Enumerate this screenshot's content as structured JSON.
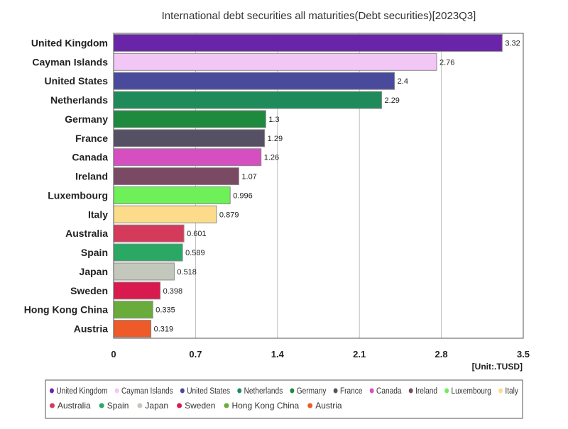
{
  "chart_data": {
    "type": "bar",
    "orientation": "horizontal",
    "title": "International debt securities all maturities(Debt securities)[2023Q3]",
    "unit_label": "[Unit:.TUSD]",
    "xlim": [
      0,
      3.5
    ],
    "x_ticks": [
      0,
      0.7,
      1.4,
      2.1,
      2.8,
      3.5
    ],
    "x_tick_labels": [
      "0",
      "0.7",
      "1.4",
      "2.1",
      "2.8",
      "3.5"
    ],
    "grid": true,
    "legend_position": "bottom",
    "categories": [
      "United Kingdom",
      "Cayman Islands",
      "United States",
      "Netherlands",
      "Germany",
      "France",
      "Canada",
      "Ireland",
      "Luxembourg",
      "Italy",
      "Australia",
      "Spain",
      "Japan",
      "Sweden",
      "Hong Kong China",
      "Austria"
    ],
    "values": [
      3.32,
      2.76,
      2.4,
      2.29,
      1.3,
      1.29,
      1.26,
      1.07,
      0.996,
      0.879,
      0.601,
      0.589,
      0.518,
      0.398,
      0.335,
      0.319
    ],
    "value_labels": [
      "3.32",
      "2.76",
      "2.4",
      "2.29",
      "1.3",
      "1.29",
      "1.26",
      "1.07",
      "0.996",
      "0.879",
      "0.601",
      "0.589",
      "0.518",
      "0.398",
      "0.335",
      "0.319"
    ],
    "colors": [
      "#6a24a8",
      "#f2c6f5",
      "#4a4a9c",
      "#1f8a5a",
      "#1e8a3e",
      "#565064",
      "#d64fc0",
      "#7a4a64",
      "#6ef058",
      "#fcdc8a",
      "#d43a5a",
      "#2aa864",
      "#c4c8bc",
      "#d81a4e",
      "#6aac3c",
      "#ee5a28"
    ]
  }
}
